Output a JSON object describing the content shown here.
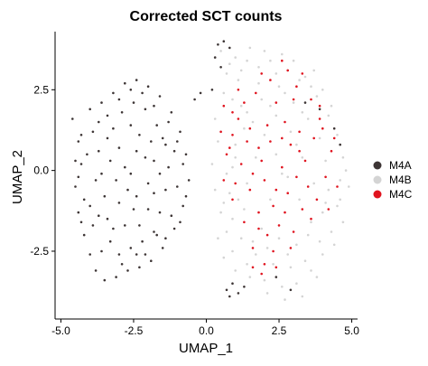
{
  "chart_data": {
    "type": "scatter",
    "title": "Corrected SCT counts",
    "xlabel": "UMAP_1",
    "ylabel": "UMAP_2",
    "xlim": [
      -5.2,
      5.2
    ],
    "ylim": [
      -4.6,
      4.3
    ],
    "x_ticks": [
      -5.0,
      -2.5,
      0.0,
      2.5,
      5.0
    ],
    "x_tick_labels": [
      "-5.0",
      "-2.5",
      "0.0",
      "2.5",
      "5.0"
    ],
    "y_ticks": [
      -2.5,
      0.0,
      2.5
    ],
    "y_tick_labels": [
      "-2.5",
      "0.0",
      "2.5"
    ],
    "grid": false,
    "legend_position": "right",
    "series": [
      {
        "name": "M4A",
        "color": "#3d3535",
        "points": [
          [
            -4.6,
            1.6
          ],
          [
            -4.4,
            0.9
          ],
          [
            -4.3,
            0.2
          ],
          [
            -4.5,
            -0.5
          ],
          [
            -4.4,
            -1.3
          ],
          [
            -4.2,
            -2.0
          ],
          [
            -4.0,
            -2.6
          ],
          [
            -3.8,
            -3.1
          ],
          [
            -3.5,
            -3.4
          ],
          [
            -3.1,
            -3.3
          ],
          [
            -2.7,
            -3.1
          ],
          [
            -2.3,
            -3.0
          ],
          [
            -1.9,
            -2.8
          ],
          [
            -1.5,
            -2.4
          ],
          [
            -1.1,
            -1.8
          ],
          [
            -0.8,
            -1.1
          ],
          [
            -0.6,
            -0.3
          ],
          [
            -0.7,
            0.5
          ],
          [
            -0.9,
            1.2
          ],
          [
            -1.2,
            1.8
          ],
          [
            -1.6,
            2.3
          ],
          [
            -2.0,
            2.6
          ],
          [
            -2.4,
            2.8
          ],
          [
            -2.8,
            2.7
          ],
          [
            -3.2,
            2.4
          ],
          [
            -3.6,
            2.1
          ],
          [
            -4.0,
            1.9
          ],
          [
            -3.9,
            1.2
          ],
          [
            -3.7,
            0.6
          ],
          [
            -3.6,
            -0.1
          ],
          [
            -3.5,
            -0.8
          ],
          [
            -3.4,
            -1.5
          ],
          [
            -3.3,
            -2.2
          ],
          [
            -3.0,
            -2.6
          ],
          [
            -2.6,
            -2.4
          ],
          [
            -2.2,
            -2.2
          ],
          [
            -1.8,
            -1.9
          ],
          [
            -1.6,
            -1.3
          ],
          [
            -1.4,
            -0.6
          ],
          [
            -1.3,
            0.1
          ],
          [
            -1.4,
            0.8
          ],
          [
            -1.7,
            1.4
          ],
          [
            -2.1,
            1.9
          ],
          [
            -2.5,
            2.1
          ],
          [
            -2.9,
            1.8
          ],
          [
            -3.2,
            1.3
          ],
          [
            -3.0,
            0.7
          ],
          [
            -2.8,
            0.1
          ],
          [
            -2.7,
            -0.6
          ],
          [
            -2.5,
            -1.2
          ],
          [
            -2.3,
            -1.7
          ],
          [
            -2.0,
            -1.2
          ],
          [
            -2.0,
            -0.4
          ],
          [
            -2.1,
            0.4
          ],
          [
            -2.3,
            1.1
          ],
          [
            -2.6,
            1.4
          ],
          [
            -3.3,
            0.3
          ],
          [
            -3.1,
            -0.3
          ],
          [
            -3.0,
            -1.0
          ],
          [
            -2.8,
            -1.7
          ],
          [
            -4.1,
            0.5
          ],
          [
            -4.2,
            -0.9
          ],
          [
            -3.9,
            -1.7
          ],
          [
            -3.6,
            -2.5
          ],
          [
            -2.4,
            -2.6
          ],
          [
            -1.7,
            -2.0
          ],
          [
            -1.2,
            -1.4
          ],
          [
            -1.0,
            -0.5
          ],
          [
            -1.1,
            0.6
          ],
          [
            -1.5,
            1.0
          ],
          [
            -1.9,
            0.9
          ],
          [
            -2.4,
            0.6
          ],
          [
            -2.6,
            -0.1
          ],
          [
            -2.4,
            -0.8
          ],
          [
            -1.8,
            -0.7
          ],
          [
            -1.6,
            -0.1
          ],
          [
            -1.8,
            0.3
          ],
          [
            -3.4,
            1.0
          ],
          [
            -3.8,
            -0.3
          ],
          [
            -4.0,
            -1.1
          ],
          [
            -3.7,
            -1.4
          ],
          [
            -3.2,
            -1.8
          ],
          [
            -2.9,
            -2.9
          ],
          [
            -2.1,
            -2.6
          ],
          [
            -1.4,
            -2.1
          ],
          [
            -0.9,
            -1.6
          ],
          [
            -0.7,
            -0.8
          ],
          [
            -0.8,
            0.2
          ],
          [
            -1.0,
            0.9
          ],
          [
            -1.3,
            1.5
          ],
          [
            -1.8,
            2.0
          ],
          [
            -2.2,
            2.4
          ],
          [
            -2.6,
            2.5
          ],
          [
            -3.0,
            2.2
          ],
          [
            -3.4,
            1.7
          ],
          [
            -3.7,
            1.5
          ],
          [
            -4.3,
            1.1
          ],
          [
            -4.5,
            0.3
          ],
          [
            -4.4,
            -0.2
          ],
          [
            -4.3,
            -1.6
          ],
          [
            -0.2,
            2.4
          ],
          [
            0.2,
            2.5
          ],
          [
            -0.4,
            2.2
          ],
          [
            0.4,
            3.9
          ],
          [
            0.6,
            4.0
          ],
          [
            0.8,
            3.8
          ],
          [
            0.3,
            3.5
          ],
          [
            0.5,
            3.2
          ],
          [
            0.7,
            -3.7
          ],
          [
            0.9,
            -3.5
          ],
          [
            1.1,
            -3.8
          ],
          [
            1.3,
            -3.6
          ],
          [
            0.8,
            -3.9
          ],
          [
            2.4,
            -3.3
          ],
          [
            2.9,
            -3.7
          ],
          [
            3.4,
            2.1
          ],
          [
            3.9,
            1.9
          ],
          [
            4.4,
            1.3
          ],
          [
            4.6,
            0.8
          ]
        ]
      },
      {
        "name": "M4B",
        "color": "#d4d4d4",
        "points": [
          [
            0.3,
            1.6
          ],
          [
            0.4,
            0.9
          ],
          [
            0.2,
            0.2
          ],
          [
            0.3,
            -0.6
          ],
          [
            0.5,
            -1.3
          ],
          [
            0.4,
            -2.1
          ],
          [
            0.6,
            -2.7
          ],
          [
            1.0,
            -3.1
          ],
          [
            1.5,
            -3.3
          ],
          [
            2.0,
            -3.4
          ],
          [
            2.6,
            -3.6
          ],
          [
            3.1,
            -3.5
          ],
          [
            3.6,
            -3.1
          ],
          [
            4.0,
            -2.6
          ],
          [
            4.3,
            -1.9
          ],
          [
            4.5,
            -1.1
          ],
          [
            4.6,
            -0.3
          ],
          [
            4.7,
            0.4
          ],
          [
            4.5,
            1.1
          ],
          [
            4.2,
            1.7
          ],
          [
            3.8,
            2.3
          ],
          [
            3.4,
            2.9
          ],
          [
            3.0,
            3.4
          ],
          [
            2.6,
            3.6
          ],
          [
            2.2,
            3.4
          ],
          [
            1.8,
            3.2
          ],
          [
            1.4,
            3.4
          ],
          [
            1.0,
            3.5
          ],
          [
            0.7,
            3.0
          ],
          [
            0.6,
            2.4
          ],
          [
            1.2,
            2.0
          ],
          [
            1.6,
            1.5
          ],
          [
            2.0,
            1.1
          ],
          [
            2.4,
            0.5
          ],
          [
            2.8,
            -0.2
          ],
          [
            3.2,
            -0.9
          ],
          [
            3.6,
            -1.6
          ],
          [
            3.9,
            -2.2
          ],
          [
            3.4,
            -2.8
          ],
          [
            2.9,
            -3.0
          ],
          [
            2.3,
            -2.9
          ],
          [
            1.7,
            -2.6
          ],
          [
            1.2,
            -2.1
          ],
          [
            0.9,
            -1.5
          ],
          [
            0.8,
            -0.7
          ],
          [
            0.9,
            0.1
          ],
          [
            1.0,
            0.8
          ],
          [
            1.3,
            1.3
          ],
          [
            1.9,
            2.2
          ],
          [
            2.5,
            2.6
          ],
          [
            3.0,
            2.1
          ],
          [
            3.5,
            1.6
          ],
          [
            3.9,
            1.0
          ],
          [
            4.1,
            0.3
          ],
          [
            4.2,
            -0.6
          ],
          [
            4.0,
            -1.3
          ],
          [
            3.7,
            -0.4
          ],
          [
            3.3,
            0.4
          ],
          [
            2.9,
            1.2
          ],
          [
            2.4,
            1.7
          ],
          [
            1.7,
            0.4
          ],
          [
            1.4,
            -0.4
          ],
          [
            1.3,
            -1.2
          ],
          [
            1.9,
            -1.8
          ],
          [
            2.5,
            -2.1
          ],
          [
            3.1,
            -2.3
          ],
          [
            2.2,
            -0.9
          ],
          [
            2.6,
            -0.1
          ],
          [
            3.1,
            0.8
          ],
          [
            1.8,
            2.7
          ],
          [
            2.8,
            3.1
          ],
          [
            3.6,
            2.6
          ],
          [
            4.3,
            2.0
          ],
          [
            4.8,
            0.0
          ],
          [
            4.6,
            -0.9
          ],
          [
            4.4,
            -2.3
          ],
          [
            3.8,
            -3.3
          ],
          [
            3.3,
            -3.9
          ],
          [
            2.7,
            -4.0
          ],
          [
            2.1,
            -3.8
          ],
          [
            1.1,
            2.8
          ],
          [
            0.9,
            2.2
          ],
          [
            0.5,
            1.2
          ],
          [
            0.7,
            -0.1
          ],
          [
            0.6,
            -1.0
          ],
          [
            0.7,
            -1.9
          ],
          [
            0.9,
            -2.5
          ],
          [
            1.4,
            -2.9
          ],
          [
            4.9,
            -0.5
          ],
          [
            4.7,
            -1.6
          ],
          [
            2.0,
            3.7
          ],
          [
            2.4,
            3.0
          ],
          [
            3.2,
            2.8
          ],
          [
            3.7,
            3.1
          ],
          [
            4.0,
            2.5
          ],
          [
            1.5,
            3.8
          ],
          [
            1.2,
            3.1
          ],
          [
            0.5,
            3.7
          ],
          [
            0.8,
            3.3
          ],
          [
            2.8,
            -2.6
          ],
          [
            3.5,
            -2.0
          ],
          [
            4.1,
            -1.0
          ],
          [
            3.3,
            1.8
          ],
          [
            2.7,
            2.4
          ],
          [
            2.1,
            -2.4
          ],
          [
            1.6,
            -2.2
          ],
          [
            1.1,
            -0.9
          ],
          [
            1.0,
            0.4
          ],
          [
            1.4,
            1.8
          ],
          [
            2.2,
            2.0
          ]
        ]
      },
      {
        "name": "M4C",
        "color": "#e0141f",
        "points": [
          [
            0.5,
            1.2
          ],
          [
            0.7,
            0.5
          ],
          [
            0.6,
            -0.3
          ],
          [
            0.9,
            -0.9
          ],
          [
            1.1,
            1.6
          ],
          [
            1.4,
            0.9
          ],
          [
            1.2,
            0.2
          ],
          [
            1.5,
            -0.6
          ],
          [
            1.8,
            -1.3
          ],
          [
            2.1,
            -2.0
          ],
          [
            2.3,
            -2.5
          ],
          [
            2.0,
            -2.9
          ],
          [
            1.6,
            -2.4
          ],
          [
            1.8,
            0.7
          ],
          [
            2.1,
            1.4
          ],
          [
            2.4,
            2.1
          ],
          [
            2.7,
            1.5
          ],
          [
            2.9,
            0.8
          ],
          [
            2.6,
            0.1
          ],
          [
            2.4,
            -0.6
          ],
          [
            2.7,
            -1.3
          ],
          [
            3.0,
            -1.9
          ],
          [
            3.3,
            -1.2
          ],
          [
            3.5,
            -0.5
          ],
          [
            3.4,
            0.3
          ],
          [
            3.7,
            1.0
          ],
          [
            3.9,
            1.6
          ],
          [
            3.6,
            2.2
          ],
          [
            3.1,
            2.6
          ],
          [
            2.8,
            3.1
          ],
          [
            2.2,
            2.8
          ],
          [
            1.7,
            2.4
          ],
          [
            1.3,
            2.1
          ],
          [
            0.9,
            1.8
          ],
          [
            1.6,
            -0.1
          ],
          [
            2.0,
            -0.3
          ],
          [
            1.9,
            0.3
          ],
          [
            2.2,
            0.9
          ],
          [
            3.1,
            -0.2
          ],
          [
            3.8,
            -0.9
          ],
          [
            4.1,
            -0.2
          ],
          [
            4.3,
            0.6
          ],
          [
            4.0,
            1.3
          ],
          [
            3.2,
            1.2
          ],
          [
            2.5,
            -1.7
          ],
          [
            1.3,
            -1.6
          ],
          [
            1.0,
            -0.4
          ],
          [
            0.8,
            0.7
          ],
          [
            1.1,
            2.5
          ],
          [
            1.9,
            3.0
          ],
          [
            2.6,
            3.4
          ],
          [
            3.3,
            3.0
          ],
          [
            3.9,
            2.0
          ],
          [
            4.4,
            1.0
          ],
          [
            4.5,
            -0.5
          ],
          [
            2.9,
            -2.4
          ],
          [
            2.4,
            -3.0
          ],
          [
            1.9,
            -3.2
          ],
          [
            1.6,
            -3.0
          ],
          [
            1.8,
            -1.8
          ],
          [
            2.3,
            -1.1
          ],
          [
            2.8,
            -0.7
          ],
          [
            3.2,
            0.6
          ],
          [
            2.6,
            1.0
          ],
          [
            1.5,
            1.3
          ],
          [
            0.9,
            1.1
          ],
          [
            0.6,
            2.0
          ],
          [
            3.6,
            -1.5
          ],
          [
            4.2,
            -1.2
          ],
          [
            3.0,
            2.2
          ]
        ]
      }
    ]
  }
}
